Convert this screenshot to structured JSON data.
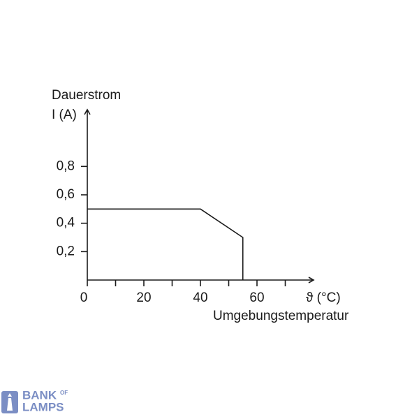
{
  "chart_data": {
    "type": "line",
    "y_label_line1": "Dauerstrom",
    "y_label_line2": "I (A)",
    "x_unit_label": "ϑ (°C)",
    "x_label": "Umgebungstemperatur",
    "x": [
      0,
      40,
      55,
      55
    ],
    "values": [
      0.5,
      0.5,
      0.3,
      0
    ],
    "color": "#1a1a1a",
    "xlim": [
      0,
      80
    ],
    "ylim": [
      0,
      1.2
    ],
    "xticks": [
      0,
      20,
      40,
      60
    ],
    "xminorticks": [
      10,
      30,
      50,
      70
    ],
    "yticks": [
      {
        "value": 0.2,
        "label": "0,2"
      },
      {
        "value": 0.4,
        "label": "0,4"
      },
      {
        "value": 0.6,
        "label": "0,6"
      },
      {
        "value": 0.8,
        "label": "0,8"
      }
    ],
    "grid": false
  },
  "watermark": {
    "line1": "BANK",
    "sup": "OF",
    "line2": "LAMPS"
  }
}
